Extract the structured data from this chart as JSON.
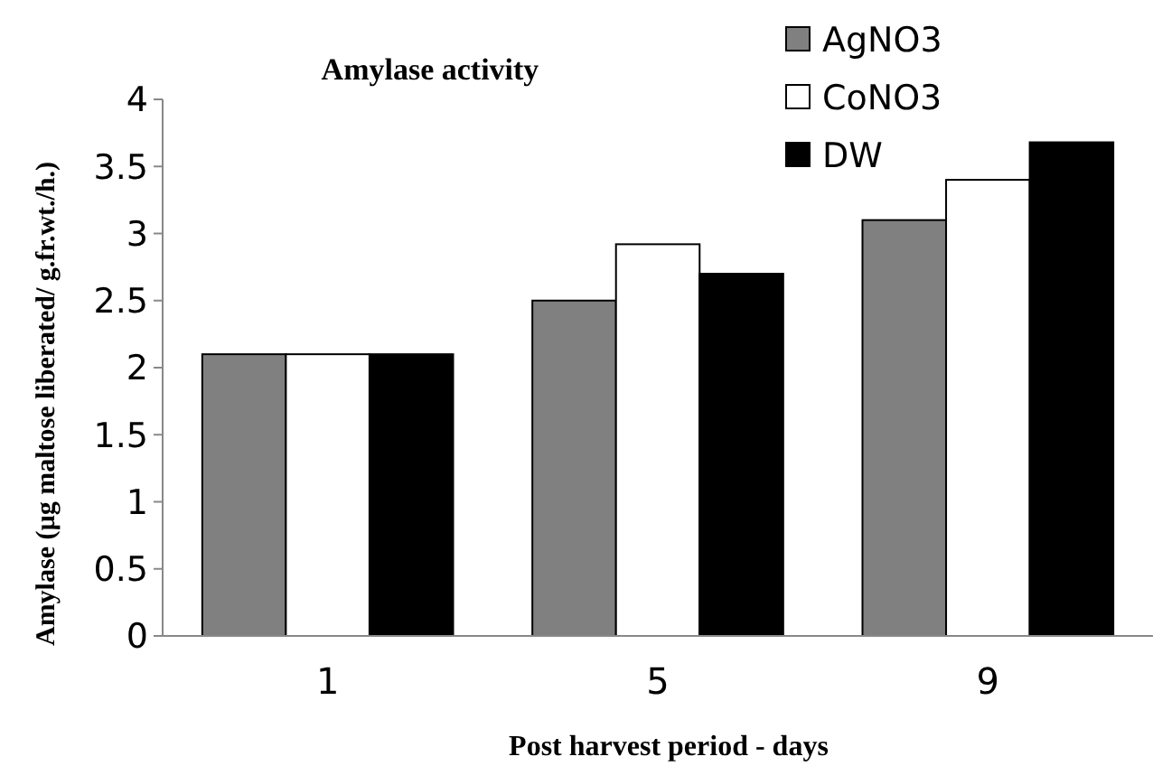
{
  "chart_data": {
    "type": "bar",
    "title": "Amylase activity",
    "xlabel": "Post harvest period - days",
    "ylabel": "Amylase (µg maltose liberated/ g.fr.wt./h.)",
    "categories": [
      "1",
      "5",
      "9"
    ],
    "series": [
      {
        "name": "AgNO3",
        "color": "#808080",
        "values": [
          2.1,
          2.5,
          3.1
        ]
      },
      {
        "name": "CoNO3",
        "color": "#ffffff",
        "values": [
          2.1,
          2.92,
          3.4
        ]
      },
      {
        "name": "DW",
        "color": "#000000",
        "values": [
          2.1,
          2.7,
          3.68
        ]
      }
    ],
    "ylim": [
      0,
      4
    ],
    "yticks": [
      0,
      0.5,
      1,
      1.5,
      2,
      2.5,
      3,
      3.5,
      4
    ],
    "grid": false,
    "legend": "top right"
  }
}
